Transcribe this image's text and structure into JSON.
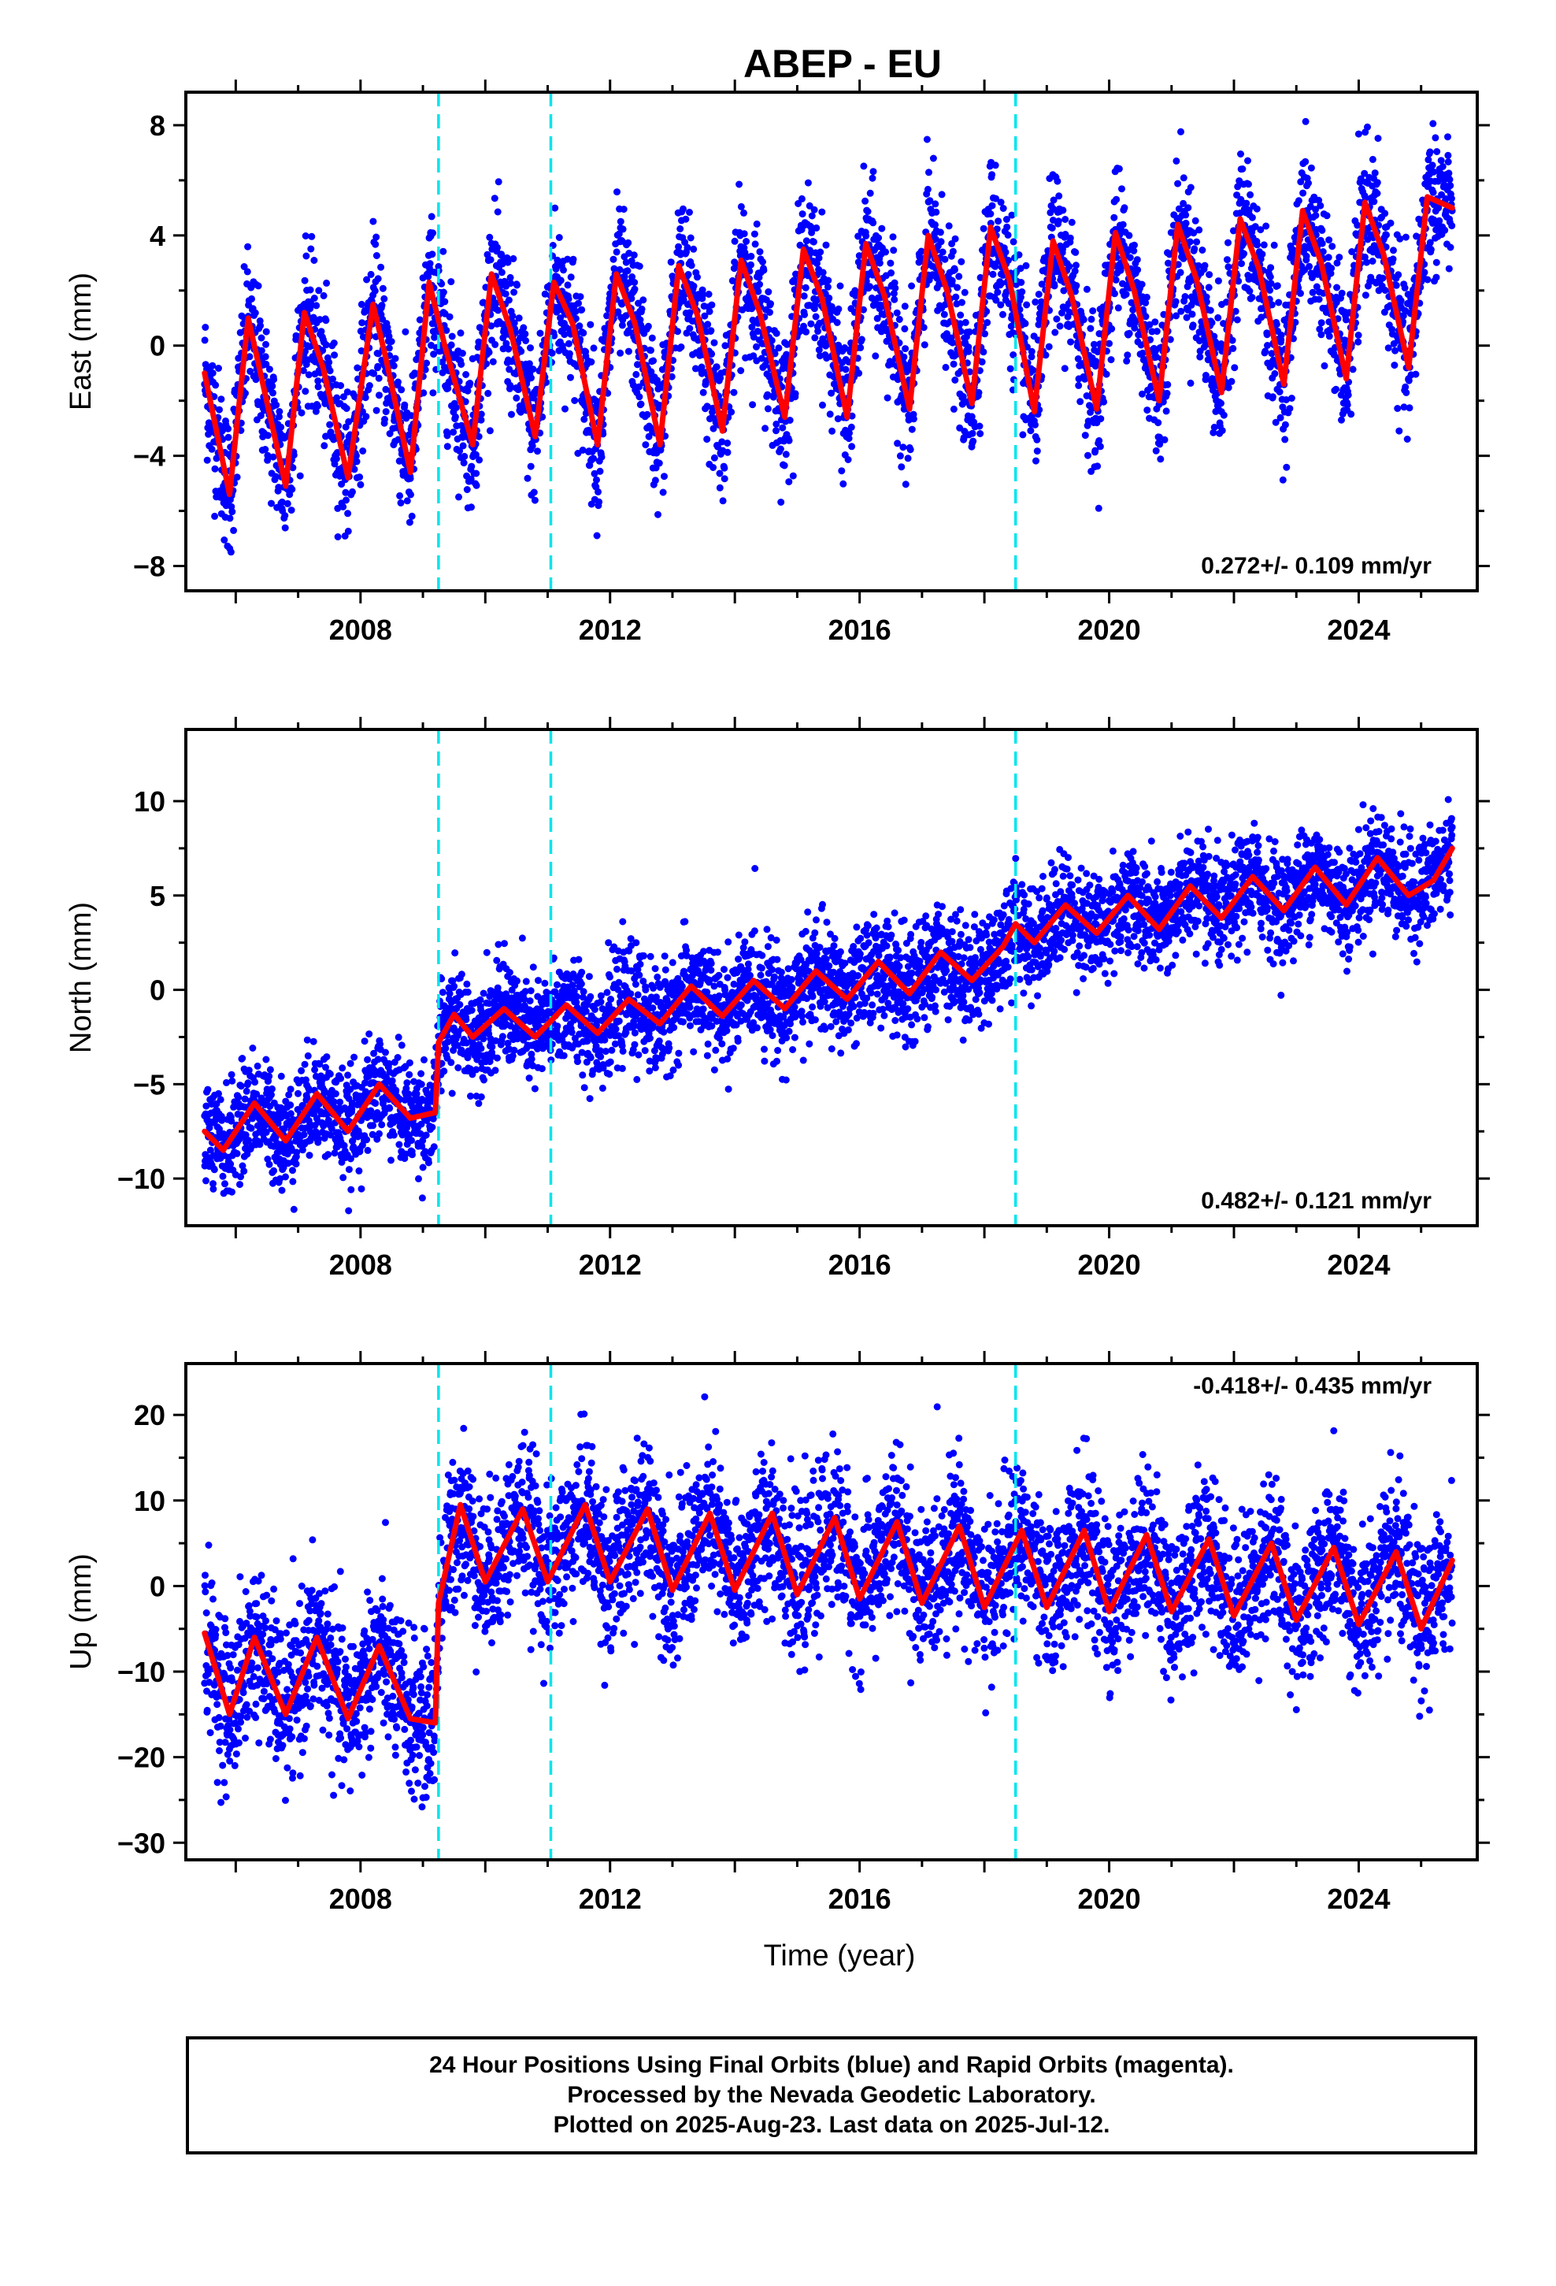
{
  "title": "ABEP - EU",
  "xlabel": "Time (year)",
  "caption": {
    "line1": "24 Hour Positions Using Final Orbits (blue) and Rapid Orbits (magenta).",
    "line2": "Processed by the Nevada Geodetic Laboratory.",
    "line3": "Plotted on 2025-Aug-23. Last data on 2025-Jul-12."
  },
  "colors": {
    "data": "#0000ff",
    "model": "#ff0000",
    "events": "#00e5ee",
    "frame": "#000000"
  },
  "chart_data": [
    {
      "type": "scatter",
      "panel": "east",
      "ylabel": "East (mm)",
      "annotation": "0.272+/- 0.109 mm/yr",
      "xlim": [
        2005.2,
        2025.9
      ],
      "ylim": [
        -8.9,
        9.2
      ],
      "xticks": [
        2008,
        2012,
        2016,
        2020,
        2024
      ],
      "yticks": [
        -8,
        -4,
        0,
        4,
        8
      ],
      "event_lines": [
        2009.25,
        2011.05,
        2018.5
      ],
      "series": [
        {
          "kind": "model",
          "x": [
            2005.5,
            2005.9,
            2006.2,
            2006.8,
            2007.1,
            2007.4,
            2007.8,
            2008.2,
            2008.4,
            2008.8,
            2009.1,
            2009.35,
            2009.8,
            2010.1,
            2010.4,
            2010.8,
            2011.1,
            2011.4,
            2011.8,
            2012.1,
            2012.4,
            2012.8,
            2013.1,
            2013.4,
            2013.8,
            2014.1,
            2014.4,
            2014.8,
            2015.1,
            2015.4,
            2015.8,
            2016.1,
            2016.4,
            2016.8,
            2017.1,
            2017.4,
            2017.8,
            2018.1,
            2018.4,
            2018.8,
            2019.1,
            2019.4,
            2019.8,
            2020.1,
            2020.4,
            2020.8,
            2021.1,
            2021.4,
            2021.8,
            2022.1,
            2022.4,
            2022.8,
            2023.1,
            2023.4,
            2023.8,
            2024.1,
            2024.4,
            2024.8,
            2025.1,
            2025.5
          ],
          "y": [
            -1.0,
            -5.4,
            1.0,
            -5.1,
            1.2,
            -0.8,
            -4.8,
            1.5,
            -0.4,
            -4.6,
            2.3,
            0.0,
            -3.6,
            2.6,
            0.6,
            -3.3,
            2.3,
            0.8,
            -3.6,
            2.6,
            0.8,
            -3.6,
            2.9,
            1.1,
            -3.1,
            3.1,
            1.2,
            -2.6,
            3.5,
            1.7,
            -2.6,
            3.7,
            1.8,
            -2.3,
            4.0,
            2.0,
            -2.1,
            4.3,
            2.4,
            -2.4,
            3.8,
            1.8,
            -2.3,
            4.1,
            2.0,
            -2.0,
            4.4,
            2.4,
            -1.7,
            4.6,
            2.8,
            -1.4,
            4.9,
            3.0,
            -1.2,
            5.2,
            3.3,
            -0.8,
            5.4,
            5.0
          ]
        }
      ]
    },
    {
      "type": "scatter",
      "panel": "north",
      "ylabel": "North (mm)",
      "annotation": "0.482+/- 0.121 mm/yr",
      "xlim": [
        2005.2,
        2025.9
      ],
      "ylim": [
        -12.5,
        13.8
      ],
      "xticks": [
        2008,
        2012,
        2016,
        2020,
        2024
      ],
      "yticks": [
        -10,
        -5,
        0,
        5,
        10
      ],
      "event_lines": [
        2009.25,
        2011.05,
        2018.5
      ],
      "series": [
        {
          "kind": "model",
          "x": [
            2005.5,
            2005.8,
            2006.3,
            2006.8,
            2007.3,
            2007.8,
            2008.3,
            2008.8,
            2009.2,
            2009.25,
            2009.5,
            2009.8,
            2010.3,
            2010.8,
            2011.3,
            2011.8,
            2012.3,
            2012.8,
            2013.3,
            2013.8,
            2014.3,
            2014.8,
            2015.3,
            2015.8,
            2016.3,
            2016.8,
            2017.3,
            2017.8,
            2018.3,
            2018.5,
            2018.8,
            2019.3,
            2019.8,
            2020.3,
            2020.8,
            2021.3,
            2021.8,
            2022.3,
            2022.8,
            2023.3,
            2023.8,
            2024.3,
            2024.8,
            2025.2,
            2025.5
          ],
          "y": [
            -7.5,
            -8.5,
            -6.0,
            -8.0,
            -5.5,
            -7.5,
            -5.0,
            -6.8,
            -6.5,
            -2.8,
            -1.3,
            -2.5,
            -1.0,
            -2.5,
            -0.8,
            -2.3,
            -0.5,
            -1.8,
            0.2,
            -1.4,
            0.5,
            -1.0,
            1.0,
            -0.5,
            1.5,
            -0.2,
            2.0,
            0.5,
            2.3,
            3.5,
            2.5,
            4.5,
            3.0,
            5.0,
            3.2,
            5.5,
            3.8,
            6.0,
            4.2,
            6.5,
            4.5,
            7.0,
            5.0,
            5.8,
            7.5
          ]
        }
      ]
    },
    {
      "type": "scatter",
      "panel": "up",
      "ylabel": "Up (mm)",
      "annotation": "-0.418+/- 0.435 mm/yr",
      "xlabel": "Time (year)",
      "xlim": [
        2005.2,
        2025.9
      ],
      "ylim": [
        -32,
        26
      ],
      "xticks": [
        2008,
        2012,
        2016,
        2020,
        2024
      ],
      "yticks": [
        -30,
        -20,
        -10,
        0,
        10,
        20
      ],
      "event_lines": [
        2009.25,
        2011.05,
        2018.5
      ],
      "series": [
        {
          "kind": "model",
          "x": [
            2005.5,
            2005.9,
            2006.3,
            2006.8,
            2007.3,
            2007.8,
            2008.3,
            2008.8,
            2009.2,
            2009.25,
            2009.6,
            2010.0,
            2010.6,
            2011.0,
            2011.6,
            2012.0,
            2012.6,
            2013.0,
            2013.6,
            2014.0,
            2014.6,
            2015.0,
            2015.6,
            2016.0,
            2016.6,
            2017.0,
            2017.6,
            2018.0,
            2018.6,
            2019.0,
            2019.6,
            2020.0,
            2020.6,
            2021.0,
            2021.6,
            2022.0,
            2022.6,
            2023.0,
            2023.6,
            2024.0,
            2024.6,
            2025.0,
            2025.5
          ],
          "y": [
            -5.5,
            -15.0,
            -6.0,
            -15.0,
            -6.0,
            -15.5,
            -7.0,
            -15.5,
            -16.0,
            -2.0,
            9.5,
            0.5,
            9.0,
            0.5,
            9.5,
            0.5,
            9.0,
            -0.5,
            8.5,
            -0.5,
            8.5,
            -1.0,
            8.0,
            -1.5,
            7.5,
            -2.0,
            7.0,
            -2.5,
            6.5,
            -2.5,
            6.5,
            -3.0,
            6.0,
            -3.0,
            5.5,
            -3.5,
            5.0,
            -4.0,
            4.5,
            -4.5,
            4.0,
            -5.0,
            3.0
          ]
        }
      ]
    }
  ]
}
